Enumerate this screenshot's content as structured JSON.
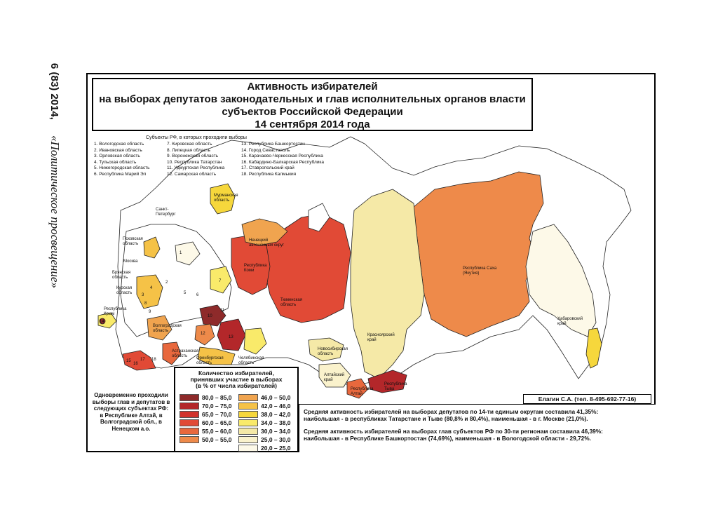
{
  "journal": {
    "issue": "6 (83) 2014,",
    "name": "«Политическое просвещение»"
  },
  "map": {
    "title_lines": [
      "Активность избирателей",
      "на выборах депутатов законодательных и глав исполнительных органов власти",
      "субъектов Российской Федерации",
      "14 сентября 2014 года"
    ],
    "list_title": "Субъекты РФ, в которых проходили выборы",
    "subjects_col1": [
      "1. Вологодская область",
      "2. Ивановская область",
      "3. Орловская область",
      "4. Тульская область",
      "5. Нижегородская область",
      "6. Республика Марий Эл"
    ],
    "subjects_col2": [
      "7. Кировская область",
      "8. Липецкая область",
      "9. Воронежская область",
      "10. Республика Татарстан",
      "11. Удмуртская Республика",
      "12. Самарская область"
    ],
    "subjects_col3": [
      "13. Республика Башкортостан",
      "14. Город Севастополь",
      "15. Карачаево-Черкесская Республика",
      "16. Кабардино-Балкарская Республика",
      "17. Ставропольский край",
      "18. Республика Калмыкия"
    ],
    "region_labels": {
      "spb": "Санкт-\nПетербург",
      "pskov": "Псковская\nобласть",
      "moscow": "Москва",
      "bryansk": "Брянская\nобласть",
      "kursk": "Курская\nобласть",
      "crimea": "Республика\nКрым",
      "volgograd": "Волгоградская\nобласть",
      "astrakhan": "Астраханская\nобласть",
      "orenburg": "Оренбургская\nобласть",
      "chelyabinsk": "Челябинская\nобласть",
      "komi": "Республика\nКоми",
      "nenets": "Ненецкий\nавтономный округ",
      "murmansk": "Мурманская\nобласть",
      "tyumen": "Тюменская\nобласть",
      "novosibirsk": "Новосибирская\nобласть",
      "altai_krai": "Алтайский\nкрай",
      "altai_rep": "Республика\nАлтай",
      "krasnoyarsk": "Красноярский\nкрай",
      "tuva": "Республика\nТыва",
      "sakha": "Республика Саха\n(Якутия)",
      "khabarovsk": "Хабаровский\nкрай"
    },
    "region_numbers": [
      "1",
      "2",
      "3",
      "4",
      "5",
      "6",
      "7",
      "8",
      "9",
      "10",
      "11",
      "12",
      "13",
      "14",
      "15",
      "16",
      "17",
      "18"
    ]
  },
  "legend": {
    "title_lines": [
      "Количество избирателей,",
      "принявших участие в выборах",
      "(в % от числа избирателей)"
    ],
    "items_left": [
      {
        "range": "80,0 – 85,0",
        "color": "#8e2a2a"
      },
      {
        "range": "70,0 – 75,0",
        "color": "#b3272a"
      },
      {
        "range": "65,0 – 70,0",
        "color": "#d2332d"
      },
      {
        "range": "60,0 – 65,0",
        "color": "#e14a36"
      },
      {
        "range": "55,0 – 60,0",
        "color": "#e8683d"
      },
      {
        "range": "50,0 – 55,0",
        "color": "#ee8a4a"
      }
    ],
    "items_right": [
      {
        "range": "46,0 – 50,0",
        "color": "#f0a44f"
      },
      {
        "range": "42,0 – 46,0",
        "color": "#f5c247"
      },
      {
        "range": "38,0 – 42,0",
        "color": "#f6d73c"
      },
      {
        "range": "34,0 – 38,0",
        "color": "#f9ea6a"
      },
      {
        "range": "30,0 – 34,0",
        "color": "#f5e9a7"
      },
      {
        "range": "25,0 – 30,0",
        "color": "#faf2cc"
      },
      {
        "range": "20,0 – 25,0",
        "color": "#fdf9e8"
      }
    ]
  },
  "note": "Одновременно проходили выборы глав и депутатов в следующих субъектах РФ: в Республике Алтай, в Волгоградской обл., в Ненецком а.о.",
  "author": "Елагин С.А. (тел. 8-495-692-77-16)",
  "stats": [
    "Средняя активность избирателей на выборах депутатов по 14-ти единым округам составила 41,35%:",
    "наибольшая - в республиках Татарстане и Тыве (80,8% и 80,4%), наименьшая - в г. Москве (21,0%).",
    "Средняя активность избирателей на выборах глав субъектов РФ по 30-ти регионам составила 46,39%:",
    "наибольшая - в Республике Башкортостан (74,69%), наименьшая - в Вологодской области - 29,72%."
  ],
  "colors": {
    "c1": "#8e2a2a",
    "c2": "#b3272a",
    "c3": "#d2332d",
    "c4": "#e14a36",
    "c5": "#e8683d",
    "c6": "#ee8a4a",
    "c7": "#f0a44f",
    "c8": "#f5c247",
    "c9": "#f6d73c",
    "c10": "#f9ea6a",
    "c11": "#f5e9a7",
    "c12": "#faf2cc",
    "c13": "#fdf9e8"
  }
}
